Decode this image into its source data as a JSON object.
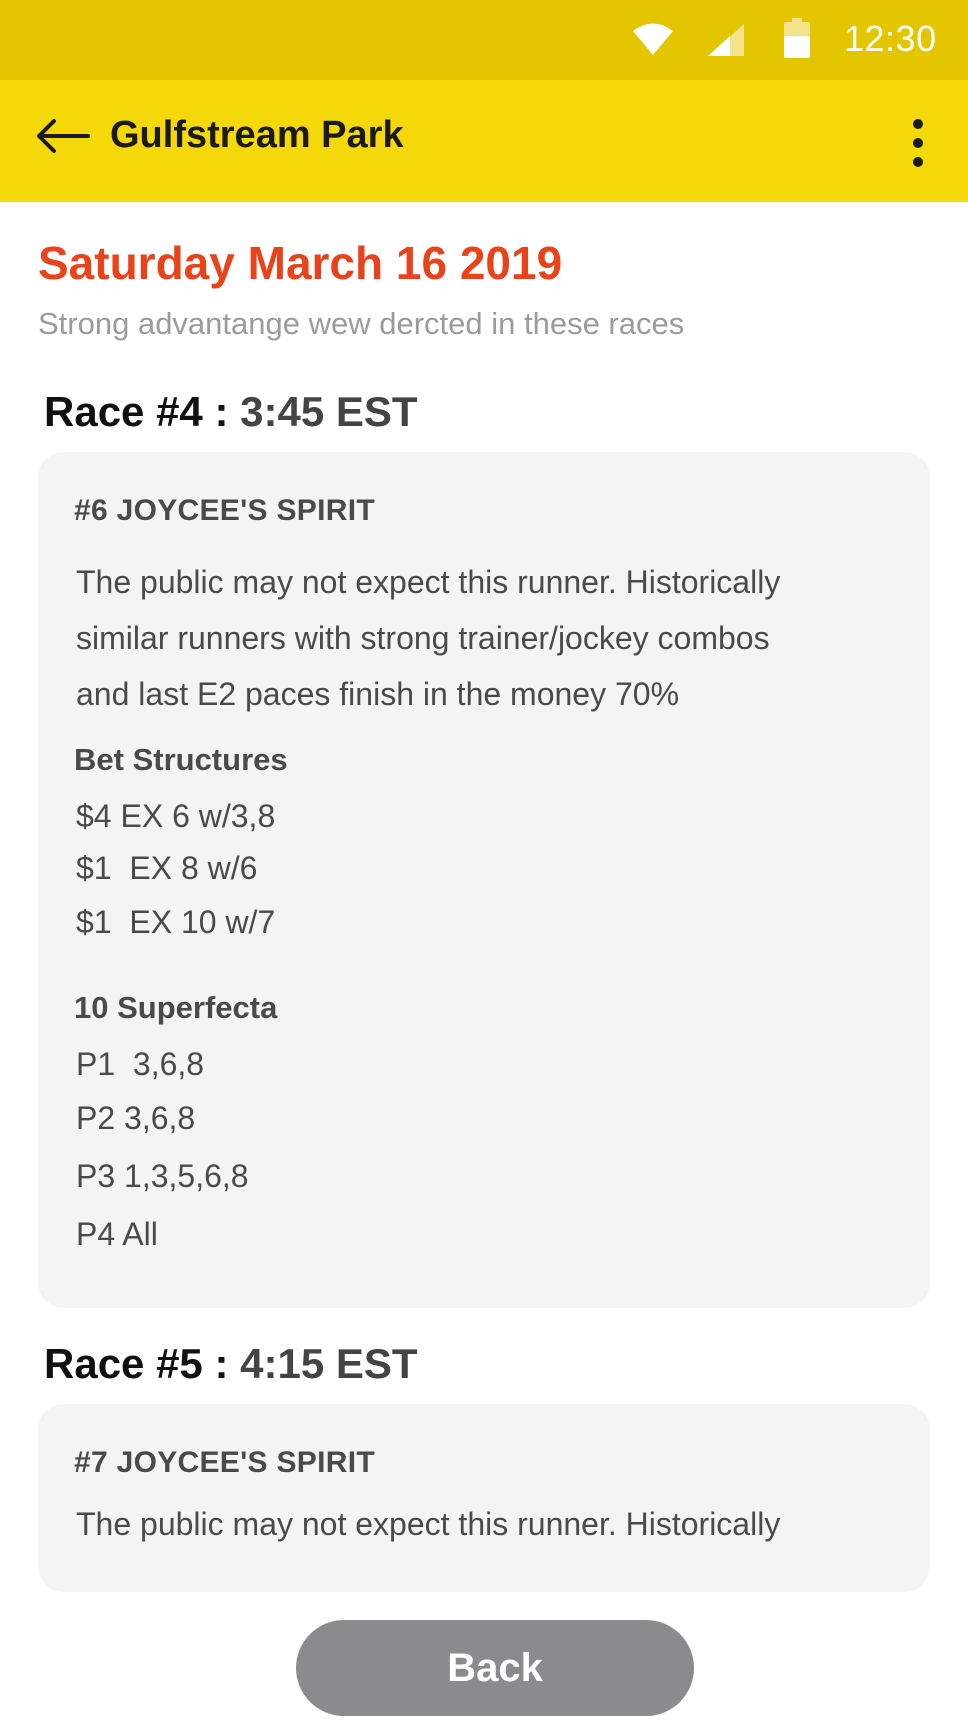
{
  "status_bar": {
    "time": "12:30",
    "icons": [
      "wifi-icon",
      "signal-icon",
      "battery-icon"
    ]
  },
  "app_bar": {
    "title": "Gulfstream Park",
    "back_icon": "arrow-left-icon",
    "menu_icon": "more-vertical-icon"
  },
  "header": {
    "date": "Saturday March 16 2019",
    "subtitle": "Strong advantange wew dercted in these races"
  },
  "races": [
    {
      "label": "Race #4 : ",
      "time": "3:45 EST",
      "horse": "#6 JOYCEE'S SPIRIT",
      "description_lines": [
        "The public may not expect this runner. Historically",
        "similar runners with strong trainer/jockey combos",
        "and last E2 paces finish in the money 70%"
      ],
      "bet_structures_heading": "Bet Structures",
      "bet_structures": [
        "$4 EX 6 w/3,8",
        "$1  EX 8 w/6",
        "$1  EX 10 w/7"
      ],
      "superfecta_heading": "10 Superfecta",
      "superfecta": [
        "P1  3,6,8",
        "P2 3,6,8",
        "P3 1,3,5,6,8",
        "P4 All"
      ]
    },
    {
      "label": "Race #5 : ",
      "time": "4:15 EST",
      "horse": "#7 JOYCEE'S SPIRIT",
      "description_lines": [
        "The public may not expect this runner. Historically"
      ]
    }
  ],
  "footer": {
    "back_label": "Back"
  },
  "colors": {
    "status_bar": "#e4c600",
    "app_bar": "#f5d80a",
    "accent": "#e8431a",
    "card": "#f4f4f4",
    "button": "#8a8b8d"
  }
}
